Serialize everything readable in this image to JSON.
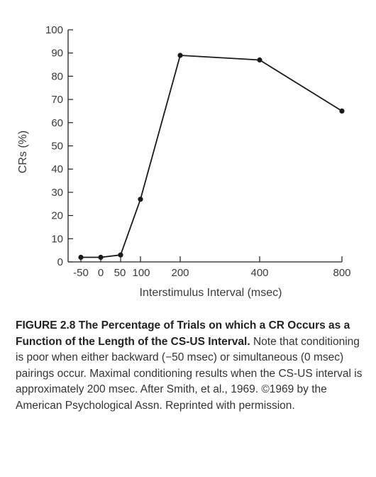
{
  "chart_data": {
    "type": "line",
    "xlabel": "Interstimulus Interval (msec)",
    "ylabel": "CRs (%)",
    "ylim": [
      0,
      100
    ],
    "yticks": [
      0,
      10,
      20,
      30,
      40,
      50,
      60,
      70,
      80,
      90,
      100
    ],
    "xtick_labels": [
      "-50",
      "0",
      "50",
      "100",
      "200",
      "400",
      "800"
    ],
    "grid": false,
    "series": [
      {
        "x": [
          -50,
          0,
          50,
          100,
          200,
          400,
          800
        ],
        "values": [
          2,
          2,
          3,
          27,
          89,
          87,
          65
        ]
      }
    ],
    "color": "#1a1a1a"
  },
  "caption": {
    "label": "FIGURE 2.8",
    "title": "The Percentage of Trials on which a CR Occurs as a Function of the Length of the CS-US Interval.",
    "body": "Note that conditioning is poor when either backward (−50 msec) or simultaneous (0 msec) pairings occur. Maximal conditioning results when the CS-US interval is approximately 200 msec. After Smith, et al., 1969. ©1969 by the American Psychological Assn. Reprinted with permission."
  }
}
